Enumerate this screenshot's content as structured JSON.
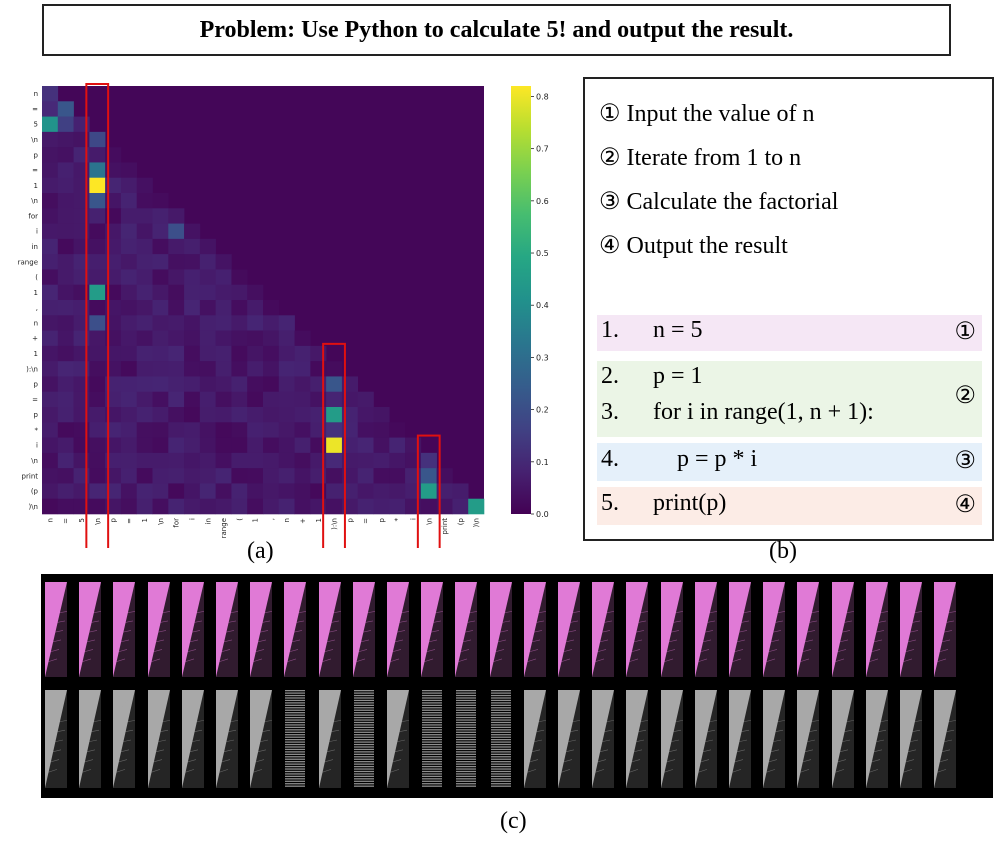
{
  "problem_text": "Problem: Use Python to calculate 5! and output the result.",
  "chart_data": {
    "type": "heatmap",
    "title": "Attention map",
    "tokens": [
      "n",
      "=",
      "5",
      "\\n",
      "p",
      "=",
      "1",
      "\\n",
      "for",
      "i",
      "in",
      "range",
      "(",
      "1",
      ",",
      "n",
      "+",
      "1",
      "):\\n",
      "p",
      "=",
      "p",
      "*",
      "i",
      "\\n",
      "print",
      "(p",
      ")\\n"
    ],
    "colorbar": {
      "ticks": [
        0.0,
        0.1,
        0.2,
        0.3,
        0.4,
        0.5,
        0.6,
        0.7,
        0.8
      ],
      "tick_labels": [
        "0.0",
        "0.1",
        "0.2",
        "0.3",
        "0.4",
        "0.5",
        "0.6",
        "0.7",
        "0.8"
      ],
      "range": [
        0,
        0.82
      ],
      "colormap": "viridis"
    },
    "notable_values": [
      {
        "row": "5",
        "col": "n",
        "value": 0.42
      },
      {
        "row": "1 (p = 1)",
        "col": "\\n",
        "value": 0.82
      },
      {
        "row": "1 (range end)",
        "col": "\\n",
        "value": 0.45
      },
      {
        "row": "p (p = p * i)",
        "col": "):\\n",
        "value": 0.45
      },
      {
        "row": "i",
        "col": "):\\n",
        "value": 0.8
      },
      {
        "row": "(p",
        "col": "\\n",
        "value": 0.45
      },
      {
        "row": ")\\n",
        "col": ")\\n",
        "value": 0.45
      }
    ],
    "highlighted_columns": [
      "\\n (after n = 5)",
      "):\\n",
      "\\n (after p = p * i)"
    ]
  },
  "captions": {
    "a": "(a)",
    "b": "(b)",
    "c": "(c)"
  },
  "steps": [
    {
      "marker": "①",
      "text": "Input the value of n"
    },
    {
      "marker": "②",
      "text": "Iterate from 1 to n"
    },
    {
      "marker": "③",
      "text": "Calculate the factorial"
    },
    {
      "marker": "④",
      "text": "Output the result"
    }
  ],
  "code": [
    {
      "num": "1.",
      "src": "n = 5",
      "marker": "①",
      "color": "#f5e7f5"
    },
    {
      "num": "2.",
      "src": "p = 1",
      "marker": "②",
      "color": "#ebf5e6"
    },
    {
      "num": "3.",
      "src": "for i in range(1, n + 1):",
      "marker": "",
      "color": "#ebf5e6"
    },
    {
      "num": "4.",
      "src": "    p = p * i",
      "marker": "③",
      "color": "#e5f0fa"
    },
    {
      "num": "5.",
      "src": "print(p)",
      "marker": "④",
      "color": "#fcece6"
    }
  ],
  "thumbnails": {
    "count_per_row": 27,
    "top_color": "#e07ad6",
    "bottom_color": "#a8a8a8",
    "bottom_striped": [
      7,
      9,
      11,
      12,
      13
    ]
  }
}
